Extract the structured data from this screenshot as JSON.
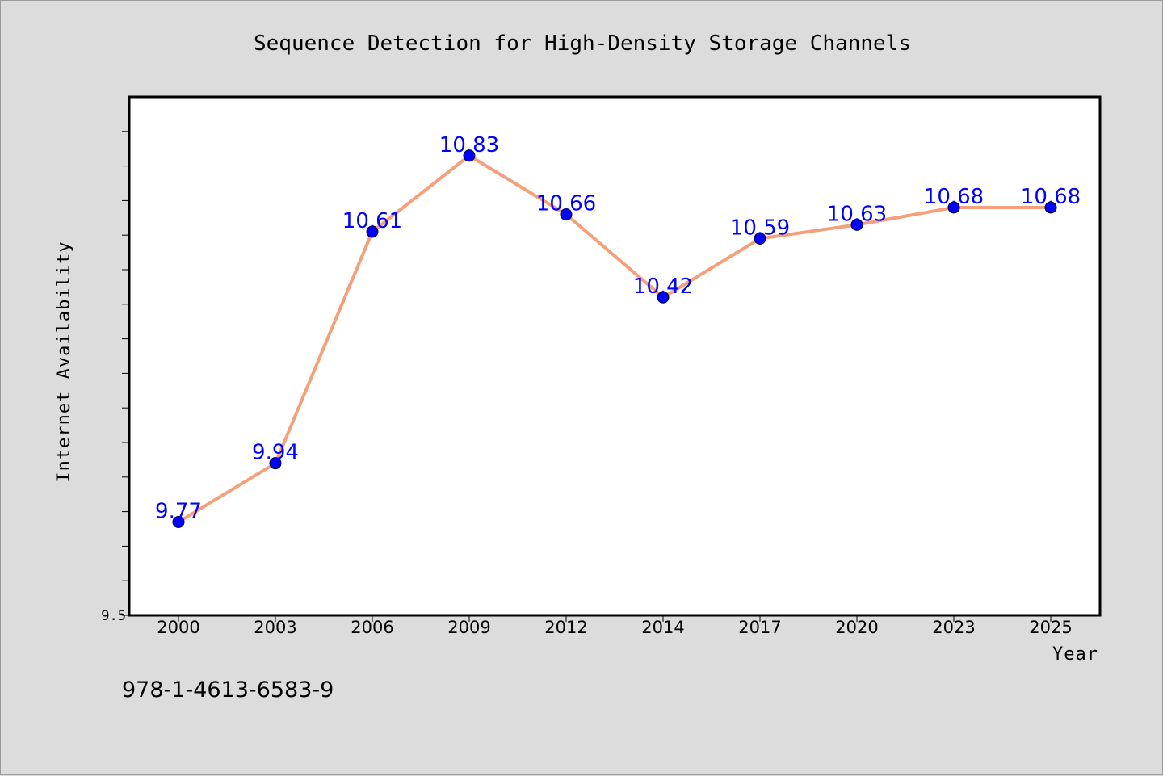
{
  "chart_data": {
    "type": "line",
    "title": "Sequence Detection for High-Density Storage Channels",
    "xlabel": "Year",
    "ylabel": "Internet Availability",
    "categories": [
      "2000",
      "2003",
      "2006",
      "2009",
      "2012",
      "2014",
      "2017",
      "2020",
      "2023",
      "2025"
    ],
    "series": [
      {
        "values": [
          9.77,
          9.94,
          10.61,
          10.83,
          10.66,
          10.42,
          10.59,
          10.63,
          10.68,
          10.68
        ]
      }
    ],
    "ylim": [
      9.5,
      11.0
    ],
    "ytick_labels": [
      "9.5"
    ],
    "minor_ytick_step": 0.1,
    "grid": false,
    "legend": "none",
    "data_labels": true,
    "colors": {
      "line": "#f4a07a",
      "marker": "#0000ff",
      "data_label": "#0000ff",
      "plot_background": "#ffffff",
      "figure_background": "#dcdcdc"
    }
  },
  "footer_text": "978-1-4613-6583-9"
}
